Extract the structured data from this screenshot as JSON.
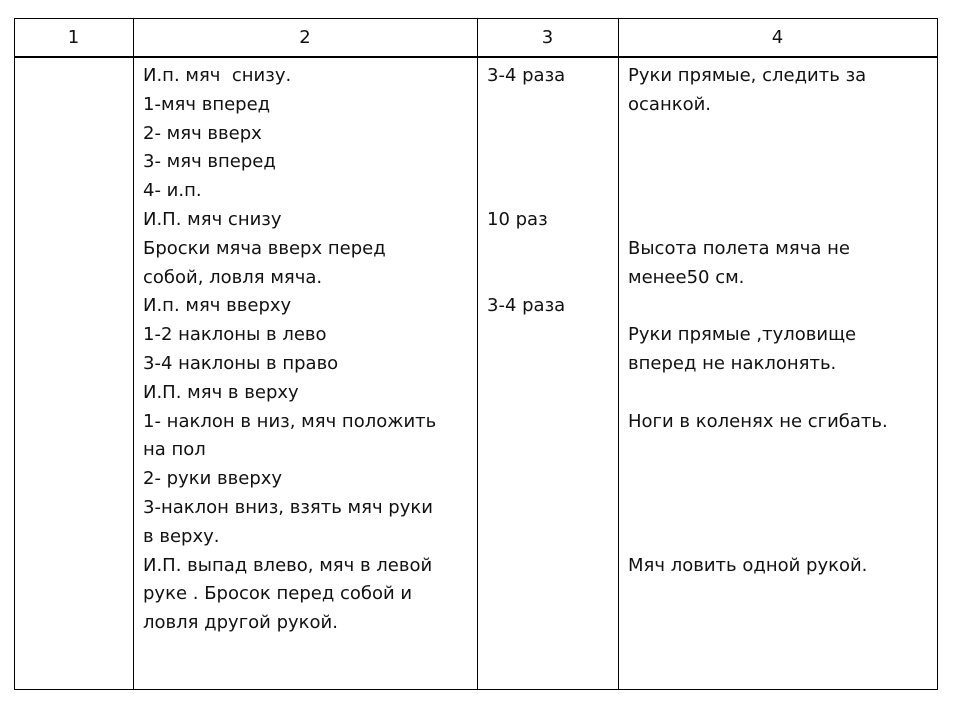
{
  "table": {
    "header": [
      "1",
      "2",
      "3",
      "4"
    ],
    "column_2": [
      "И.п. мяч  снизу.",
      "1-мяч вперед",
      "2- мяч вверх",
      "3- мяч вперед",
      "4- и.п.",
      "И.П. мяч снизу",
      "Броски мяча вверх перед",
      "собой, ловля мяча.",
      "И.п. мяч вверху",
      "1-2 наклоны в лево",
      "3-4 наклоны в право",
      "И.П. мяч в верху",
      "1- наклон в низ, мяч положить",
      "на пол",
      "2- руки вверху",
      "3-наклон вниз, взять мяч руки",
      "в верху.",
      "И.П. выпад влево, мяч в левой",
      "руке . Бросок перед собой и",
      "ловля другой рукой."
    ],
    "column_3": [
      [
        "3-4 раза"
      ],
      [
        "10 раз"
      ],
      [
        "3-4 раза"
      ]
    ],
    "column_4": [
      [
        "Руки прямые, следить за",
        "осанкой."
      ],
      [
        "Высота полета мяча не",
        "менее50 см."
      ],
      [
        "Руки прямые ,туловище",
        "вперед не наклонять."
      ],
      [
        "Ноги в коленях не сгибать."
      ],
      [
        "Мяч ловить одной рукой."
      ]
    ]
  }
}
